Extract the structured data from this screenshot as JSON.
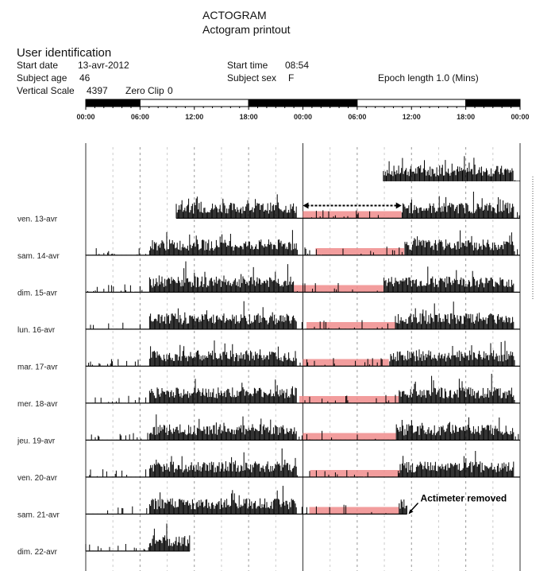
{
  "header": {
    "title": "ACTOGRAM",
    "subtitle": "Actogram printout",
    "section": "User identification",
    "start_date_label": "Start date",
    "start_date": "13-avr-2012",
    "subject_age_label": "Subject age",
    "subject_age": "46",
    "vertical_scale_label": "Vertical Scale",
    "vertical_scale": "4397",
    "zero_clip_label": "Zero Clip",
    "zero_clip": "0",
    "start_time_label": "Start time",
    "start_time": "08:54",
    "subject_sex_label": "Subject sex",
    "subject_sex": "F",
    "epoch_label": "Epoch length 1.0 (Mins)"
  },
  "chart_data": {
    "type": "actogram",
    "title": "ACTOGRAM",
    "x_axis": {
      "range_hours": [
        0,
        48
      ],
      "tick_labels": [
        "00:00",
        "06:00",
        "12:00",
        "18:00",
        "00:00",
        "06:00",
        "12:00",
        "18:00",
        "00:00"
      ],
      "light_dark_bar": [
        {
          "from": 0,
          "to": 6,
          "phase": "dark"
        },
        {
          "from": 6,
          "to": 18,
          "phase": "light"
        },
        {
          "from": 18,
          "to": 30,
          "phase": "dark"
        },
        {
          "from": 30,
          "to": 42,
          "phase": "light"
        },
        {
          "from": 42,
          "to": 48,
          "phase": "dark"
        }
      ]
    },
    "rows": [
      {
        "label": "",
        "activity_from": 32.9,
        "activity_to": 48,
        "rest": null
      },
      {
        "label": "ven. 13-avr",
        "activity_from": 10,
        "activity_to": 48,
        "rest": [
          24.0,
          34.9
        ]
      },
      {
        "label": "sam. 14-avr",
        "activity_from": 0,
        "activity_to": 48,
        "rest": [
          25.4,
          35.2
        ]
      },
      {
        "label": "dim. 15-avr",
        "activity_from": 0,
        "activity_to": 48,
        "rest": [
          23.0,
          32.9
        ]
      },
      {
        "label": "lun. 16-avr",
        "activity_from": 0,
        "activity_to": 48,
        "rest": [
          24.4,
          34.2
        ]
      },
      {
        "label": "mar. 17-avr",
        "activity_from": 0,
        "activity_to": 48,
        "rest": [
          24.0,
          33.5
        ]
      },
      {
        "label": "mer. 18-avr",
        "activity_from": 0,
        "activity_to": 48,
        "rest": [
          23.6,
          34.6
        ]
      },
      {
        "label": "jeu. 19-avr",
        "activity_from": 0,
        "activity_to": 48,
        "rest": [
          24.0,
          34.3
        ]
      },
      {
        "label": "ven. 20-avr",
        "activity_from": 0,
        "activity_to": 48,
        "rest": [
          24.8,
          34.7
        ]
      },
      {
        "label": "sam. 21-avr",
        "activity_from": 0,
        "activity_to": 35.5,
        "rest": [
          24.7,
          34.6
        ]
      },
      {
        "label": "dim. 22-avr",
        "activity_from": 0,
        "activity_to": 11.5,
        "rest": null
      }
    ],
    "annotations": [
      {
        "text": "Actimeter removed",
        "row": "sam. 21-avr",
        "at_hour": 35.5
      },
      {
        "type": "double-arrow",
        "row": "ven. 13-avr",
        "from_hour": 24.0,
        "to_hour": 34.9
      }
    ],
    "colors": {
      "rest": "#f08c8c",
      "activity": "#000000"
    }
  }
}
